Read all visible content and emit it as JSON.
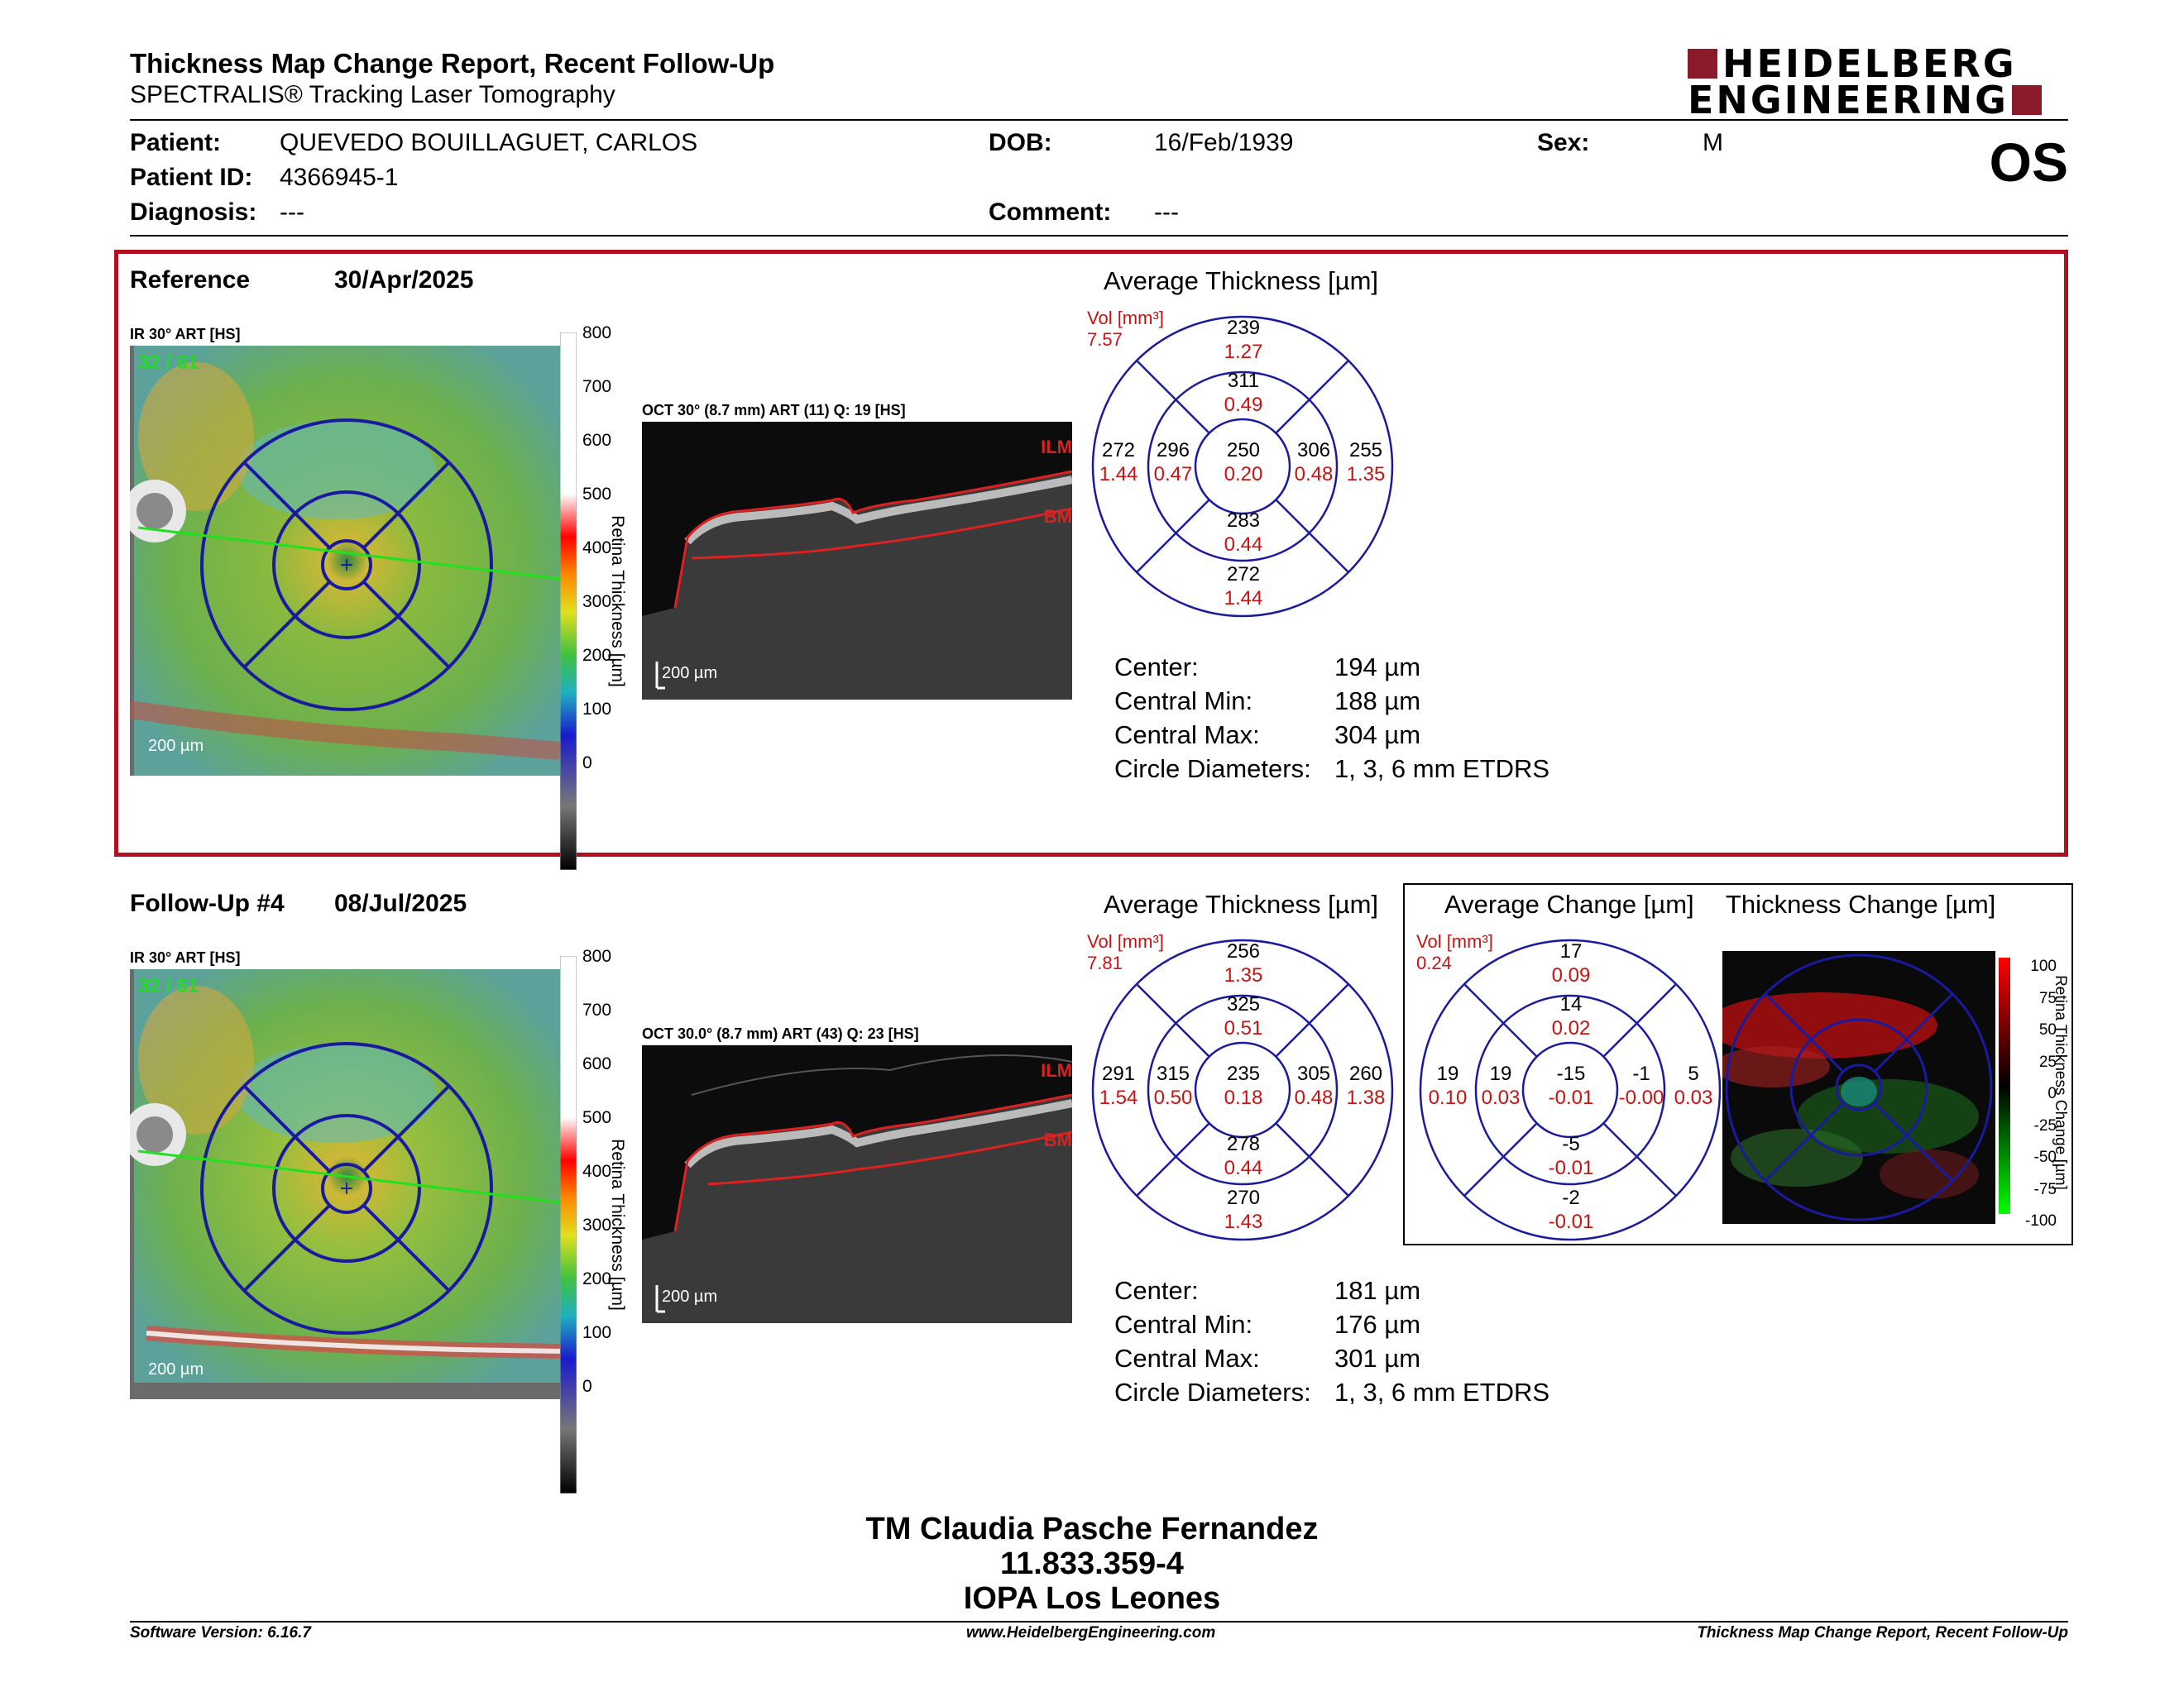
{
  "header": {
    "title": "Thickness Map Change Report, Recent Follow-Up",
    "subtitle": "SPECTRALIS® Tracking Laser Tomography",
    "logo_line1": "HEIDELBERG",
    "logo_line2": "ENGINEERING",
    "eye": "OS"
  },
  "patient": {
    "patient_label": "Patient:",
    "patient_value": "QUEVEDO BOUILLAGUET, CARLOS",
    "id_label": "Patient ID:",
    "id_value": "4366945-1",
    "diagnosis_label": "Diagnosis:",
    "diagnosis_value": "---",
    "dob_label": "DOB:",
    "dob_value": "16/Feb/1939",
    "comment_label": "Comment:",
    "comment_value": "---",
    "sex_label": "Sex:",
    "sex_value": "M"
  },
  "reference": {
    "label": "Reference",
    "date": "30/Apr/2025",
    "ir_label": "IR 30° ART [HS]",
    "ir_overlay": "32 / 61",
    "oct_label": "OCT 30° (8.7 mm) ART (11) Q: 19 [HS]",
    "scale_ticks": [
      "800",
      "700",
      "600",
      "500",
      "400",
      "300",
      "200",
      "100",
      "0"
    ],
    "scale_title": "Retina Thickness [µm]",
    "fundus_scale": "200 µm",
    "oct_scale": "200 µm",
    "ilm": "ILM",
    "bm": "BM",
    "avg_title": "Average Thickness [µm]",
    "vol_label": "Vol [mm³]",
    "vol_value": "7.57",
    "sectors": {
      "outer_top": [
        "239",
        "1.27"
      ],
      "inner_top": [
        "311",
        "0.49"
      ],
      "outer_left": [
        "272",
        "1.44"
      ],
      "inner_left": [
        "296",
        "0.47"
      ],
      "center": [
        "250",
        "0.20"
      ],
      "inner_right": [
        "306",
        "0.48"
      ],
      "outer_right": [
        "255",
        "1.35"
      ],
      "inner_bottom": [
        "283",
        "0.44"
      ],
      "outer_bottom": [
        "272",
        "1.44"
      ]
    },
    "stats": [
      {
        "label": "Center:",
        "value": "194 µm"
      },
      {
        "label": "Central Min:",
        "value": "188 µm"
      },
      {
        "label": "Central Max:",
        "value": "304 µm"
      },
      {
        "label": "Circle Diameters:",
        "value": "1, 3, 6 mm ETDRS"
      }
    ]
  },
  "followup": {
    "label": "Follow-Up #4",
    "date": "08/Jul/2025",
    "ir_label": "IR 30° ART [HS]",
    "ir_overlay": "32 / 61",
    "oct_label": "OCT 30.0° (8.7 mm) ART (43) Q: 23 [HS]",
    "scale_ticks": [
      "800",
      "700",
      "600",
      "500",
      "400",
      "300",
      "200",
      "100",
      "0"
    ],
    "scale_title": "Retina Thickness [µm]",
    "fundus_scale": "200 µm",
    "oct_scale": "200 µm",
    "ilm": "ILM",
    "bm": "BM",
    "avg_title": "Average Thickness [µm]",
    "vol_label": "Vol [mm³]",
    "vol_value": "7.81",
    "sectors": {
      "outer_top": [
        "256",
        "1.35"
      ],
      "inner_top": [
        "325",
        "0.51"
      ],
      "outer_left": [
        "291",
        "1.54"
      ],
      "inner_left": [
        "315",
        "0.50"
      ],
      "center": [
        "235",
        "0.18"
      ],
      "inner_right": [
        "305",
        "0.48"
      ],
      "outer_right": [
        "260",
        "1.38"
      ],
      "inner_bottom": [
        "278",
        "0.44"
      ],
      "outer_bottom": [
        "270",
        "1.43"
      ]
    },
    "stats": [
      {
        "label": "Center:",
        "value": "181 µm"
      },
      {
        "label": "Central Min:",
        "value": "176 µm"
      },
      {
        "label": "Central Max:",
        "value": "301 µm"
      },
      {
        "label": "Circle Diameters:",
        "value": "1, 3, 6 mm ETDRS"
      }
    ]
  },
  "change": {
    "avg_title": "Average Change [µm]",
    "map_title": "Thickness Change [µm]",
    "vol_label": "Vol [mm³]",
    "vol_value": "0.24",
    "sectors": {
      "outer_top": [
        "17",
        "0.09"
      ],
      "inner_top": [
        "14",
        "0.02"
      ],
      "outer_left": [
        "19",
        "0.10"
      ],
      "inner_left": [
        "19",
        "0.03"
      ],
      "center": [
        "-15",
        "-0.01"
      ],
      "inner_right": [
        "-1",
        "-0.00"
      ],
      "outer_right": [
        "5",
        "0.03"
      ],
      "inner_bottom": [
        "-5",
        "-0.01"
      ],
      "outer_bottom": [
        "-2",
        "-0.01"
      ]
    },
    "scale_ticks": [
      "100",
      "75",
      "50",
      "25",
      "0",
      "-25",
      "-50",
      "-75",
      "-100"
    ],
    "scale_title": "Retina Thickness Change [µm]"
  },
  "signature": {
    "line1": "TM Claudia Pasche Fernandez",
    "line2": "11.833.359-4",
    "line3": "IOPA Los Leones"
  },
  "footer": {
    "left": "Software Version: 6.16.7",
    "center": "www.HeidelbergEngineering.com",
    "right": "Thickness Map Change Report, Recent Follow-Up"
  },
  "colors": {
    "brand": "#8b1a2b",
    "ref_border": "#b01020",
    "etdrs_blue": "#1a1aa0",
    "volume_red": "#cc1111"
  }
}
